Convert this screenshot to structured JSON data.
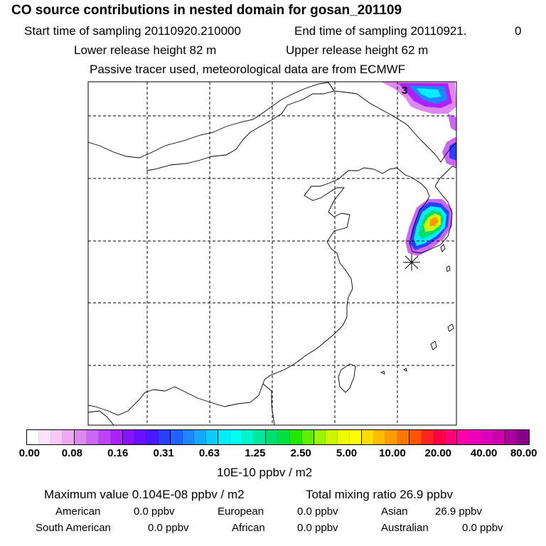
{
  "header": {
    "title": "CO  source contributions in nested domain for gosan_201109",
    "start_label": "Start time of sampling 20110920.210000",
    "end_label": "End time of sampling 20110921.",
    "end_suffix": "0",
    "lower_height": "Lower release height   82 m",
    "upper_height": "Upper release height   62 m",
    "tracer_note": "Passive tracer used, meteorological data are from ECMWF"
  },
  "chart_data": {
    "type": "heatmap",
    "title": "CO  source contributions in nested domain for gosan_201109",
    "map_label": "3",
    "colorbar": {
      "unit": "10E-10 ppbv / m2",
      "tick_labels": [
        "0.00",
        "0.08",
        "0.16",
        "0.31",
        "0.63",
        "1.25",
        "2.50",
        "5.00",
        "10.00",
        "20.00",
        "40.00",
        "80.00"
      ],
      "colors": [
        "#ffffff",
        "#fbe3fb",
        "#f6c9f6",
        "#eeaaf0",
        "#e088f0",
        "#cc66f4",
        "#bb44f8",
        "#a922fa",
        "#8a12fa",
        "#6a10ff",
        "#4a18ff",
        "#2a40ff",
        "#1e62ff",
        "#1e86ff",
        "#12a8ff",
        "#0ccaff",
        "#00eeff",
        "#00ffee",
        "#00f5c8",
        "#00e8a0",
        "#00dd70",
        "#00e040",
        "#22e800",
        "#5cf000",
        "#99f500",
        "#ccf700",
        "#eeff00",
        "#ffff00",
        "#ffdd00",
        "#ffbb00",
        "#ff9900",
        "#ff7700",
        "#ff5500",
        "#ff2222",
        "#ff0044",
        "#ff0077",
        "#ff00aa",
        "#ee00bb",
        "#dd00bb",
        "#cc00aa",
        "#aa0099",
        "#880088"
      ]
    },
    "plume_levels": [
      "0.16",
      "0.31",
      "0.63",
      "1.25",
      "2.50",
      "5.00",
      "10.00"
    ]
  },
  "stats": {
    "max_value": "Maximum value  0.104E-08 ppbv / m2",
    "total_mixing": "Total mixing ratio       26.9 ppbv",
    "regions": [
      {
        "name": "American",
        "value": "0.0 ppbv"
      },
      {
        "name": "European",
        "value": "0.0 ppbv"
      },
      {
        "name": "Asian",
        "value": "26.9 ppbv"
      },
      {
        "name": "South American",
        "value": "0.0 ppbv"
      },
      {
        "name": "African",
        "value": "0.0 ppbv"
      },
      {
        "name": "Australian",
        "value": "0.0 ppbv"
      }
    ]
  }
}
